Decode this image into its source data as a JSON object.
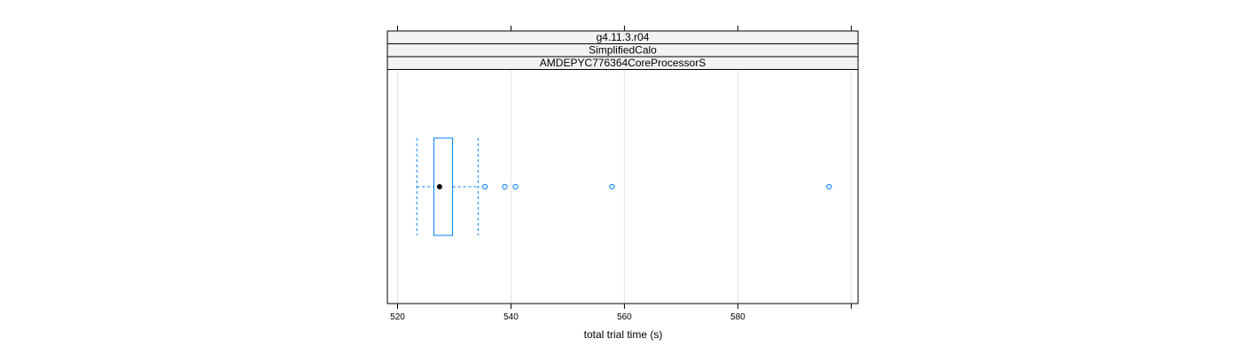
{
  "chart_data": {
    "type": "boxplot",
    "orientation": "horizontal",
    "strips": [
      "g4.11.3.r04",
      "SimplifiedCalo",
      "AMDEPYC776364CoreProcessorS"
    ],
    "xlabel": "total trial time (s)",
    "xlim": [
      518.2,
      601.2
    ],
    "x_ticks": [
      520,
      540,
      560,
      580
    ],
    "x_tick_labels": [
      "520",
      "540",
      "560",
      "580"
    ],
    "grid": true,
    "box": {
      "whisker_low": 523.4,
      "q1": 526.4,
      "median": 527.4,
      "q3": 529.7,
      "whisker_high": 534.2,
      "outliers": [
        535.4,
        538.9,
        540.8,
        557.8,
        596.1
      ]
    },
    "colors": {
      "box": "#0080ff",
      "median": "#000000",
      "grid": "#e6e6e6",
      "strip_bg": "#f2f2f2"
    }
  }
}
